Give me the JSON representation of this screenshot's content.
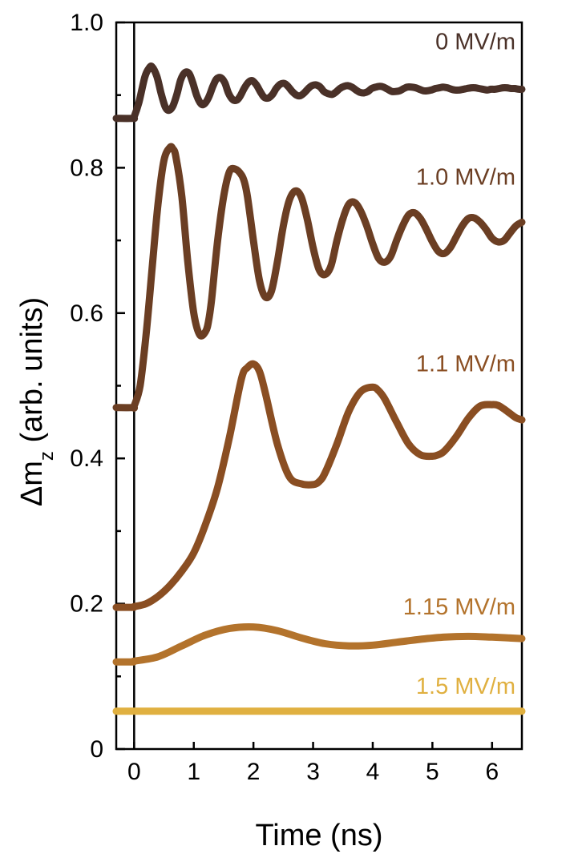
{
  "chart_data": {
    "type": "line",
    "title": "",
    "xlabel": "Time (ns)",
    "ylabel_main": "Δm",
    "ylabel_sub": "z",
    "ylabel_rest": " (arb. units)",
    "xlim": [
      -0.3,
      6.5
    ],
    "ylim": [
      0,
      1.0
    ],
    "xticks": [
      0,
      1,
      2,
      3,
      4,
      5,
      6
    ],
    "xtick_labels": [
      "0",
      "1",
      "2",
      "3",
      "4",
      "5",
      "6"
    ],
    "yticks": [
      0,
      0.2,
      0.4,
      0.6,
      0.8,
      1.0
    ],
    "ytick_labels": [
      "0",
      "0.2",
      "0.4",
      "0.6",
      "0.8",
      "1.0"
    ],
    "yminor_ticks": [
      0.1,
      0.3,
      0.5,
      0.7,
      0.9
    ],
    "vline_x": 0,
    "series": [
      {
        "name": "0 MV/m",
        "color": "#4a3128",
        "x": [
          -0.3,
          -0.02,
          0.0,
          0.08,
          0.18,
          0.25,
          0.3,
          0.38,
          0.45,
          0.52,
          0.58,
          0.65,
          0.72,
          0.78,
          0.85,
          0.92,
          0.98,
          1.05,
          1.12,
          1.18,
          1.25,
          1.32,
          1.38,
          1.45,
          1.52,
          1.58,
          1.65,
          1.72,
          1.78,
          1.85,
          1.92,
          1.98,
          2.05,
          2.12,
          2.18,
          2.25,
          2.32,
          2.38,
          2.45,
          2.52,
          2.58,
          2.65,
          2.72,
          2.78,
          2.85,
          2.92,
          2.98,
          3.05,
          3.12,
          3.18,
          3.25,
          3.32,
          3.38,
          3.45,
          3.52,
          3.58,
          3.65,
          3.72,
          3.78,
          3.85,
          3.92,
          3.98,
          4.05,
          4.12,
          4.18,
          4.25,
          4.32,
          4.38,
          4.45,
          4.52,
          4.58,
          4.65,
          4.72,
          4.78,
          4.85,
          4.92,
          4.98,
          5.05,
          5.12,
          5.18,
          5.25,
          5.32,
          5.38,
          5.45,
          5.52,
          5.58,
          5.65,
          5.72,
          5.78,
          5.85,
          5.92,
          5.98,
          6.05,
          6.12,
          6.18,
          6.25,
          6.32,
          6.38,
          6.45,
          6.5
        ],
        "y": [
          0.868,
          0.868,
          0.87,
          0.89,
          0.925,
          0.937,
          0.939,
          0.926,
          0.903,
          0.884,
          0.879,
          0.885,
          0.902,
          0.921,
          0.931,
          0.93,
          0.918,
          0.899,
          0.888,
          0.888,
          0.897,
          0.912,
          0.922,
          0.924,
          0.917,
          0.903,
          0.894,
          0.893,
          0.899,
          0.91,
          0.918,
          0.92,
          0.914,
          0.904,
          0.897,
          0.896,
          0.901,
          0.909,
          0.915,
          0.916,
          0.912,
          0.905,
          0.9,
          0.899,
          0.903,
          0.909,
          0.913,
          0.914,
          0.911,
          0.905,
          0.902,
          0.901,
          0.904,
          0.909,
          0.912,
          0.913,
          0.911,
          0.907,
          0.904,
          0.903,
          0.905,
          0.909,
          0.911,
          0.912,
          0.911,
          0.908,
          0.905,
          0.905,
          0.906,
          0.909,
          0.911,
          0.911,
          0.91,
          0.908,
          0.906,
          0.906,
          0.907,
          0.909,
          0.91,
          0.911,
          0.91,
          0.908,
          0.907,
          0.907,
          0.908,
          0.909,
          0.91,
          0.91,
          0.909,
          0.908,
          0.907,
          0.908,
          0.908,
          0.909,
          0.91,
          0.91,
          0.909,
          0.909,
          0.908,
          0.908
        ]
      },
      {
        "name": "1.0 MV/m",
        "color": "#6b3e23",
        "x": [
          -0.3,
          -0.02,
          0.0,
          0.1,
          0.2,
          0.3,
          0.4,
          0.5,
          0.6,
          0.65,
          0.7,
          0.8,
          0.9,
          1.0,
          1.1,
          1.2,
          1.25,
          1.3,
          1.4,
          1.5,
          1.6,
          1.7,
          1.8,
          1.85,
          1.9,
          2.0,
          2.1,
          2.2,
          2.3,
          2.4,
          2.5,
          2.6,
          2.7,
          2.8,
          2.9,
          3.0,
          3.1,
          3.2,
          3.3,
          3.4,
          3.5,
          3.6,
          3.7,
          3.8,
          3.9,
          4.0,
          4.1,
          4.2,
          4.3,
          4.4,
          4.5,
          4.6,
          4.7,
          4.8,
          4.9,
          5.0,
          5.1,
          5.2,
          5.3,
          5.4,
          5.5,
          5.6,
          5.7,
          5.8,
          5.9,
          6.0,
          6.1,
          6.2,
          6.3,
          6.4,
          6.5
        ],
        "y": [
          0.47,
          0.47,
          0.472,
          0.5,
          0.57,
          0.66,
          0.75,
          0.81,
          0.828,
          0.826,
          0.815,
          0.76,
          0.67,
          0.6,
          0.57,
          0.575,
          0.59,
          0.62,
          0.7,
          0.76,
          0.795,
          0.798,
          0.79,
          0.78,
          0.76,
          0.7,
          0.645,
          0.622,
          0.63,
          0.67,
          0.72,
          0.755,
          0.768,
          0.76,
          0.73,
          0.69,
          0.66,
          0.653,
          0.665,
          0.7,
          0.73,
          0.75,
          0.752,
          0.74,
          0.72,
          0.695,
          0.675,
          0.67,
          0.678,
          0.7,
          0.72,
          0.735,
          0.738,
          0.73,
          0.715,
          0.698,
          0.685,
          0.682,
          0.69,
          0.705,
          0.72,
          0.73,
          0.731,
          0.725,
          0.715,
          0.703,
          0.698,
          0.7,
          0.71,
          0.72,
          0.725
        ]
      },
      {
        "name": "1.1 MV/m",
        "color": "#8a4e22",
        "x": [
          -0.3,
          -0.02,
          0.0,
          0.2,
          0.4,
          0.6,
          0.8,
          1.0,
          1.2,
          1.4,
          1.6,
          1.8,
          1.9,
          2.0,
          2.1,
          2.2,
          2.4,
          2.6,
          2.8,
          3.0,
          3.1,
          3.2,
          3.4,
          3.6,
          3.8,
          4.0,
          4.1,
          4.2,
          4.4,
          4.6,
          4.8,
          5.0,
          5.1,
          5.2,
          5.4,
          5.6,
          5.8,
          6.0,
          6.1,
          6.2,
          6.3,
          6.4,
          6.5
        ],
        "y": [
          0.195,
          0.195,
          0.196,
          0.2,
          0.21,
          0.225,
          0.245,
          0.27,
          0.31,
          0.36,
          0.43,
          0.51,
          0.525,
          0.53,
          0.52,
          0.49,
          0.42,
          0.375,
          0.365,
          0.364,
          0.368,
          0.38,
          0.42,
          0.465,
          0.492,
          0.498,
          0.493,
          0.482,
          0.45,
          0.42,
          0.405,
          0.403,
          0.405,
          0.41,
          0.43,
          0.455,
          0.472,
          0.474,
          0.473,
          0.468,
          0.462,
          0.456,
          0.453
        ]
      },
      {
        "name": "1.15 MV/m",
        "color": "#b3732c",
        "x": [
          -0.3,
          -0.02,
          0.0,
          0.4,
          0.8,
          1.2,
          1.6,
          2.0,
          2.4,
          2.8,
          3.2,
          3.6,
          4.0,
          4.4,
          4.8,
          5.2,
          5.6,
          6.0,
          6.5
        ],
        "y": [
          0.12,
          0.12,
          0.121,
          0.127,
          0.142,
          0.157,
          0.166,
          0.168,
          0.163,
          0.153,
          0.145,
          0.142,
          0.143,
          0.147,
          0.151,
          0.154,
          0.155,
          0.154,
          0.152
        ]
      },
      {
        "name": "1.5 MV/m",
        "color": "#e0b040",
        "x": [
          -0.3,
          0.0,
          1.0,
          2.0,
          3.0,
          4.0,
          5.0,
          6.0,
          6.5
        ],
        "y": [
          0.052,
          0.052,
          0.052,
          0.052,
          0.052,
          0.052,
          0.052,
          0.052,
          0.052
        ]
      }
    ],
    "series_labels": [
      {
        "text": "0 MV/m",
        "color": "#4a3128",
        "x": 6.5,
        "y": 0.963
      },
      {
        "text": "1.0 MV/m",
        "color": "#6b3e23",
        "x": 6.5,
        "y": 0.777
      },
      {
        "text": "1.1 MV/m",
        "color": "#8a4e22",
        "x": 6.5,
        "y": 0.52
      },
      {
        "text": "1.15 MV/m",
        "color": "#b3732c",
        "x": 6.5,
        "y": 0.185
      },
      {
        "text": "1.5 MV/m",
        "color": "#e0b040",
        "x": 6.5,
        "y": 0.076
      }
    ]
  }
}
